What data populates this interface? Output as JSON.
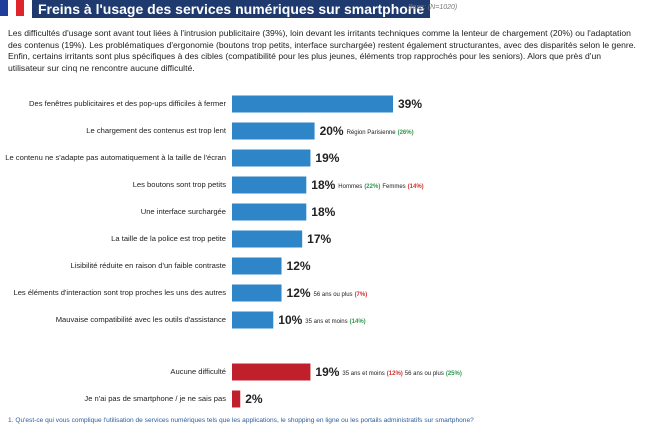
{
  "header": {
    "title": "Freins à l'usage des services numériques sur smartphone",
    "base": "Base: (N=1020)"
  },
  "intro": "Les difficultés d'usage sont avant tout liées à l'intrusion publicitaire (39%), loin devant les irritants techniques comme la lenteur de chargement (20%) ou l'adaptation des contenus (19%). Les problématiques d'ergonomie (boutons trop petits, interface surchargée) restent également structurantes, avec des disparités selon le genre. Enfin, certains irritants sont plus spécifiques à des cibles (compatibilité pour les plus jeunes, éléments trop rapprochés pour les seniors). Alors que près d'un utilisateur sur cinq ne rencontre aucune difficulté.",
  "chart_data": {
    "type": "bar",
    "orientation": "horizontal",
    "categories": [
      "Des fenêtres publicitaires et des pop-ups difficiles à fermer",
      "Le chargement des contenus est trop lent",
      "Le contenu ne s'adapte pas automatiquement à la taille de l'écran",
      "Les boutons sont trop petits",
      "Une interface surchargée",
      "La taille de la police est trop petite",
      "Lisibilité réduite en raison d'un faible contraste",
      "Les éléments d'interaction sont trop proches les uns des autres",
      "Mauvaise compatibilité avec les outils d'assistance",
      "Aucune difficulté",
      "Je n'ai pas de smartphone / je ne sais pas"
    ],
    "values": [
      39,
      20,
      19,
      18,
      18,
      17,
      12,
      12,
      10,
      19,
      2
    ],
    "value_labels": [
      "39%",
      "20%",
      "19%",
      "18%",
      "18%",
      "17%",
      "12%",
      "12%",
      "10%",
      "19%",
      "2%"
    ],
    "colors": [
      "#2e86c9",
      "#2e86c9",
      "#2e86c9",
      "#2e86c9",
      "#2e86c9",
      "#2e86c9",
      "#2e86c9",
      "#2e86c9",
      "#2e86c9",
      "#c0202c",
      "#c0202c"
    ],
    "annotations": [
      null,
      [
        {
          "text": "Région Parisienne"
        },
        {
          "text": "(26%)",
          "color": "#2f9a4c"
        }
      ],
      null,
      [
        {
          "text": "Hommes"
        },
        {
          "text": "(22%)",
          "color": "#2f9a4c"
        },
        {
          "text": "Femmes"
        },
        {
          "text": "(14%)",
          "color": "#d0312d"
        }
      ],
      null,
      null,
      null,
      [
        {
          "text": "56 ans ou plus"
        },
        {
          "text": "(7%)",
          "color": "#d0312d"
        }
      ],
      [
        {
          "text": "35 ans et moins"
        },
        {
          "text": "(14%)",
          "color": "#2f9a4c"
        }
      ],
      [
        {
          "text": "35 ans et moins"
        },
        {
          "text": "(12%)",
          "color": "#d0312d"
        },
        {
          "text": "56 ans ou plus"
        },
        {
          "text": "(25%)",
          "color": "#2f9a4c"
        }
      ],
      null
    ]
  },
  "footnote": "1. Qu'est-ce qui vous complique l'utilisation de services numériques tels que les applications, le shopping en ligne ou les portails administratifs sur smartphone?"
}
